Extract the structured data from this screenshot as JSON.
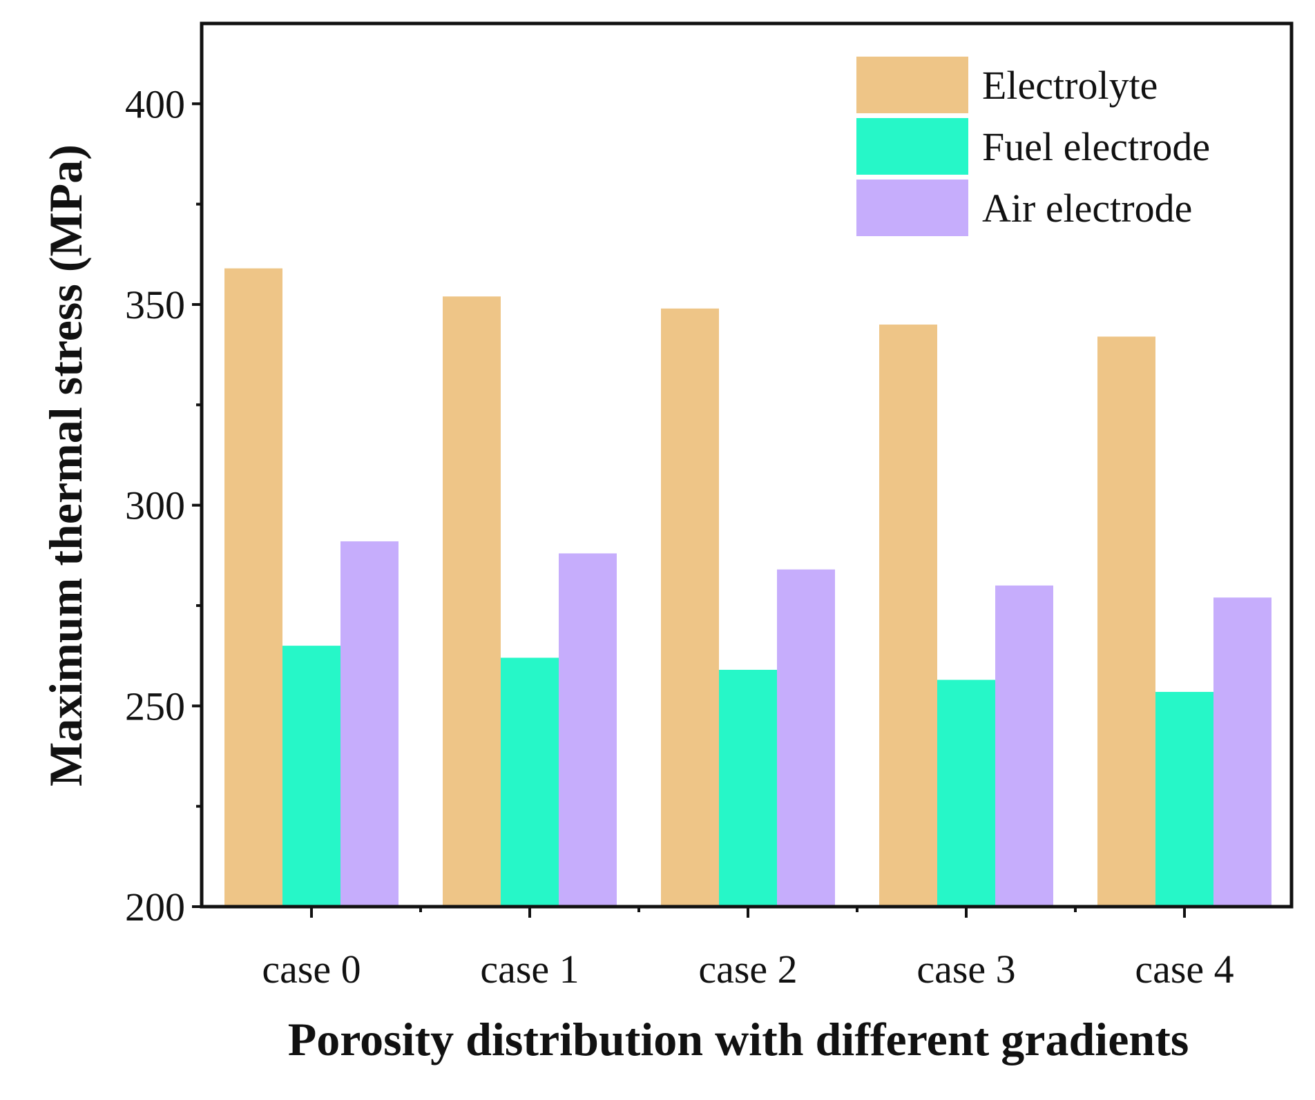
{
  "chart_data": {
    "type": "bar",
    "title": "",
    "xlabel": "Porosity distribution with different gradients",
    "ylabel": "Maximum thermal stress (MPa)",
    "ylim": [
      200,
      420
    ],
    "yticks": [
      200,
      250,
      300,
      350,
      400
    ],
    "grid": false,
    "legend_position": "top-right",
    "categories": [
      "case 0",
      "case 1",
      "case 2",
      "case 3",
      "case 4"
    ],
    "series": [
      {
        "name": "Electrolyte",
        "color": "#EEC587",
        "values": [
          359,
          352,
          349,
          345,
          342
        ]
      },
      {
        "name": "Fuel electrode",
        "color": "#26F7C8",
        "values": [
          265,
          262,
          259,
          256.5,
          253.5
        ]
      },
      {
        "name": "Air electrode",
        "color": "#C6ADFC",
        "values": [
          291,
          288,
          284,
          280,
          277
        ]
      }
    ]
  }
}
